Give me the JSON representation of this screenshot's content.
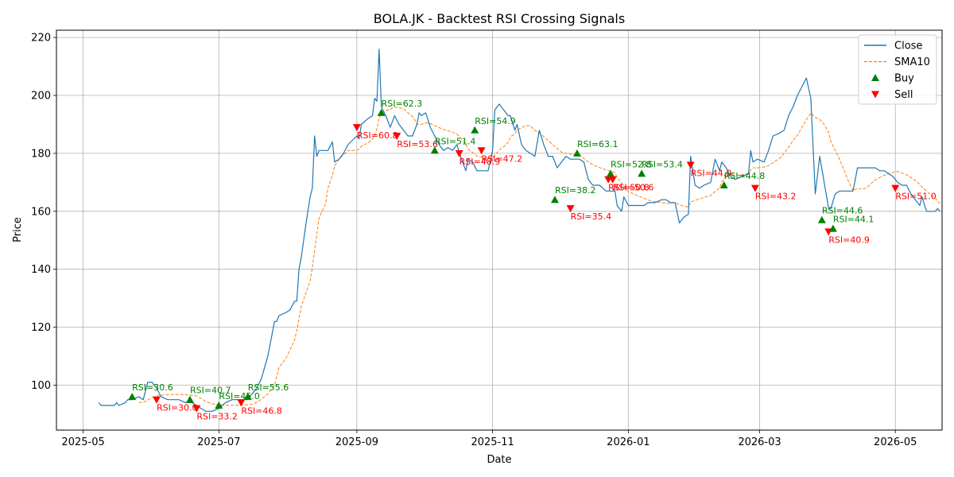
{
  "chart_data": {
    "type": "line",
    "title": "BOLA.JK - Backtest RSI Crossing Signals",
    "xlabel": "Date",
    "ylabel": "Price",
    "xlim": [
      "2025-04-19",
      "2026-05-22"
    ],
    "ylim": [
      84.5,
      222.5
    ],
    "grid": true,
    "legend_position": "top-right",
    "x_ticks": [
      {
        "date": "2025-05-01",
        "label": "2025-05"
      },
      {
        "date": "2025-07-01",
        "label": "2025-07"
      },
      {
        "date": "2025-09-01",
        "label": "2025-09"
      },
      {
        "date": "2025-11-01",
        "label": "2025-11"
      },
      {
        "date": "2026-01-01",
        "label": "2026-01"
      },
      {
        "date": "2026-03-01",
        "label": "2026-03"
      },
      {
        "date": "2026-05-01",
        "label": "2026-05"
      }
    ],
    "y_ticks": [
      100,
      120,
      140,
      160,
      180,
      200,
      220
    ],
    "colors": {
      "close": "#1f77b4",
      "sma": "#ff7f0e",
      "buy": "#008000",
      "sell": "#ff0000",
      "grid": "#b0b0b0"
    },
    "series": [
      {
        "name": "Close",
        "style": "solid",
        "points": [
          [
            "2025-05-08",
            94
          ],
          [
            "2025-05-09",
            93
          ],
          [
            "2025-05-14",
            93
          ],
          [
            "2025-05-15",
            93
          ],
          [
            "2025-05-16",
            94
          ],
          [
            "2025-05-17",
            93
          ],
          [
            "2025-05-20",
            94
          ],
          [
            "2025-05-21",
            95
          ],
          [
            "2025-05-23",
            95
          ],
          [
            "2025-05-26",
            96
          ],
          [
            "2025-05-28",
            95
          ],
          [
            "2025-05-30",
            101
          ],
          [
            "2025-06-01",
            101
          ],
          [
            "2025-06-03",
            99
          ],
          [
            "2025-06-05",
            96
          ],
          [
            "2025-06-08",
            95
          ],
          [
            "2025-06-10",
            95
          ],
          [
            "2025-06-13",
            95
          ],
          [
            "2025-06-16",
            94
          ],
          [
            "2025-06-19",
            94
          ],
          [
            "2025-06-21",
            93
          ],
          [
            "2025-06-23",
            92
          ],
          [
            "2025-06-25",
            91
          ],
          [
            "2025-06-28",
            91
          ],
          [
            "2025-07-01",
            92
          ],
          [
            "2025-07-04",
            94
          ],
          [
            "2025-07-07",
            95
          ],
          [
            "2025-07-10",
            95
          ],
          [
            "2025-07-13",
            95
          ],
          [
            "2025-07-16",
            97
          ],
          [
            "2025-07-18",
            99
          ],
          [
            "2025-07-20",
            102
          ],
          [
            "2025-07-23",
            110
          ],
          [
            "2025-07-26",
            122
          ],
          [
            "2025-07-27",
            122
          ],
          [
            "2025-07-28",
            124
          ],
          [
            "2025-07-31",
            125
          ],
          [
            "2025-08-02",
            126
          ],
          [
            "2025-08-04",
            129
          ],
          [
            "2025-08-05",
            129
          ],
          [
            "2025-08-06",
            140
          ],
          [
            "2025-08-07",
            144
          ],
          [
            "2025-08-09",
            155
          ],
          [
            "2025-08-11",
            165
          ],
          [
            "2025-08-12",
            168
          ],
          [
            "2025-08-13",
            186
          ],
          [
            "2025-08-14",
            179
          ],
          [
            "2025-08-15",
            181
          ],
          [
            "2025-08-18",
            181
          ],
          [
            "2025-08-19",
            181
          ],
          [
            "2025-08-21",
            184
          ],
          [
            "2025-08-22",
            177
          ],
          [
            "2025-08-24",
            178
          ],
          [
            "2025-08-26",
            180
          ],
          [
            "2025-08-28",
            183
          ],
          [
            "2025-09-01",
            186
          ],
          [
            "2025-09-02",
            185
          ],
          [
            "2025-09-03",
            190
          ],
          [
            "2025-09-06",
            192
          ],
          [
            "2025-09-08",
            193
          ],
          [
            "2025-09-09",
            199
          ],
          [
            "2025-09-10",
            198
          ],
          [
            "2025-09-11",
            216
          ],
          [
            "2025-09-12",
            196
          ],
          [
            "2025-09-14",
            193
          ],
          [
            "2025-09-16",
            189
          ],
          [
            "2025-09-17",
            191
          ],
          [
            "2025-09-18",
            193
          ],
          [
            "2025-09-20",
            190
          ],
          [
            "2025-09-22",
            188
          ],
          [
            "2025-09-24",
            186
          ],
          [
            "2025-09-26",
            186
          ],
          [
            "2025-09-28",
            190
          ],
          [
            "2025-09-29",
            194
          ],
          [
            "2025-09-30",
            193
          ],
          [
            "2025-10-02",
            194
          ],
          [
            "2025-10-04",
            189
          ],
          [
            "2025-10-06",
            186
          ],
          [
            "2025-10-08",
            183
          ],
          [
            "2025-10-10",
            181
          ],
          [
            "2025-10-12",
            182
          ],
          [
            "2025-10-14",
            181
          ],
          [
            "2025-10-16",
            183
          ],
          [
            "2025-10-18",
            178
          ],
          [
            "2025-10-20",
            174
          ],
          [
            "2025-10-21",
            178
          ],
          [
            "2025-10-23",
            177
          ],
          [
            "2025-10-25",
            174
          ],
          [
            "2025-10-30",
            174
          ],
          [
            "2025-11-01",
            181
          ],
          [
            "2025-11-02",
            195
          ],
          [
            "2025-11-04",
            197
          ],
          [
            "2025-11-06",
            195
          ],
          [
            "2025-11-08",
            193
          ],
          [
            "2025-11-09",
            193
          ],
          [
            "2025-11-11",
            188
          ],
          [
            "2025-11-12",
            190
          ],
          [
            "2025-11-14",
            183
          ],
          [
            "2025-11-16",
            181
          ],
          [
            "2025-11-18",
            180
          ],
          [
            "2025-11-20",
            179
          ],
          [
            "2025-11-22",
            188
          ],
          [
            "2025-11-24",
            183
          ],
          [
            "2025-11-26",
            179
          ],
          [
            "2025-11-28",
            179
          ],
          [
            "2025-11-30",
            175
          ],
          [
            "2025-12-02",
            177
          ],
          [
            "2025-12-04",
            179
          ],
          [
            "2025-12-06",
            178
          ],
          [
            "2025-12-08",
            178
          ],
          [
            "2025-12-10",
            178
          ],
          [
            "2025-12-12",
            177
          ],
          [
            "2025-12-14",
            171
          ],
          [
            "2025-12-16",
            169
          ],
          [
            "2025-12-19",
            169
          ],
          [
            "2025-12-22",
            167
          ],
          [
            "2025-12-26",
            167
          ],
          [
            "2025-12-27",
            162
          ],
          [
            "2025-12-29",
            160
          ],
          [
            "2025-12-30",
            165
          ],
          [
            "2026-01-01",
            162
          ],
          [
            "2026-01-05",
            162
          ],
          [
            "2026-01-08",
            162
          ],
          [
            "2026-01-10",
            163
          ],
          [
            "2026-01-13",
            163
          ],
          [
            "2026-01-16",
            164
          ],
          [
            "2026-01-18",
            164
          ],
          [
            "2026-01-20",
            163
          ],
          [
            "2026-01-22",
            163
          ],
          [
            "2026-01-24",
            156
          ],
          [
            "2026-01-26",
            158
          ],
          [
            "2026-01-28",
            159
          ],
          [
            "2026-01-29",
            179
          ],
          [
            "2026-01-31",
            169
          ],
          [
            "2026-02-02",
            168
          ],
          [
            "2026-02-04",
            169
          ],
          [
            "2026-02-07",
            170
          ],
          [
            "2026-02-09",
            178
          ],
          [
            "2026-02-11",
            174
          ],
          [
            "2026-02-12",
            177
          ],
          [
            "2026-02-14",
            175
          ],
          [
            "2026-02-16",
            172
          ],
          [
            "2026-02-18",
            171
          ],
          [
            "2026-02-21",
            172
          ],
          [
            "2026-02-24",
            173
          ],
          [
            "2026-02-25",
            181
          ],
          [
            "2026-02-26",
            177
          ],
          [
            "2026-02-28",
            178
          ],
          [
            "2026-03-03",
            177
          ],
          [
            "2026-03-05",
            181
          ],
          [
            "2026-03-07",
            186
          ],
          [
            "2026-03-10",
            187
          ],
          [
            "2026-03-12",
            188
          ],
          [
            "2026-03-14",
            193
          ],
          [
            "2026-03-16",
            196
          ],
          [
            "2026-03-18",
            200
          ],
          [
            "2026-03-20",
            203
          ],
          [
            "2026-03-22",
            206
          ],
          [
            "2026-03-24",
            199
          ],
          [
            "2026-03-26",
            166
          ],
          [
            "2026-03-28",
            179
          ],
          [
            "2026-03-30",
            170
          ],
          [
            "2026-04-01",
            161
          ],
          [
            "2026-04-02",
            161
          ],
          [
            "2026-04-04",
            166
          ],
          [
            "2026-04-06",
            167
          ],
          [
            "2026-04-08",
            167
          ],
          [
            "2026-04-10",
            167
          ],
          [
            "2026-04-12",
            167
          ],
          [
            "2026-04-14",
            175
          ],
          [
            "2026-04-16",
            175
          ],
          [
            "2026-04-18",
            175
          ],
          [
            "2026-04-20",
            175
          ],
          [
            "2026-04-22",
            175
          ],
          [
            "2026-04-24",
            174
          ],
          [
            "2026-04-26",
            174
          ],
          [
            "2026-04-28",
            173
          ],
          [
            "2026-04-30",
            172
          ],
          [
            "2026-05-02",
            170
          ],
          [
            "2026-05-04",
            169
          ],
          [
            "2026-05-06",
            169
          ],
          [
            "2026-05-08",
            166
          ],
          [
            "2026-05-10",
            164
          ],
          [
            "2026-05-12",
            162
          ],
          [
            "2026-05-13",
            165
          ],
          [
            "2026-05-15",
            160
          ],
          [
            "2026-05-17",
            160
          ],
          [
            "2026-05-19",
            160
          ],
          [
            "2026-05-20",
            161
          ],
          [
            "2026-05-21",
            160
          ]
        ]
      },
      {
        "name": "SMA10",
        "style": "dashed",
        "points": []
      }
    ],
    "signals": [
      {
        "type": "Buy",
        "date": "2025-05-23",
        "price": 96,
        "label": "RSI=30.6"
      },
      {
        "type": "Sell",
        "date": "2025-06-03",
        "price": 95,
        "label": "RSI=30.0"
      },
      {
        "type": "Buy",
        "date": "2025-06-18",
        "price": 95,
        "label": "RSI=40.7"
      },
      {
        "type": "Sell",
        "date": "2025-06-21",
        "price": 92,
        "label": "RSI=33.2"
      },
      {
        "type": "Buy",
        "date": "2025-07-01",
        "price": 93,
        "label": "RSI=45.0"
      },
      {
        "type": "Sell",
        "date": "2025-07-11",
        "price": 94,
        "label": "RSI=46.8"
      },
      {
        "type": "Buy",
        "date": "2025-07-14",
        "price": 96,
        "label": "RSI=55.6"
      },
      {
        "type": "Sell",
        "date": "2025-09-01",
        "price": 189,
        "label": "RSI=60.8"
      },
      {
        "type": "Buy",
        "date": "2025-09-12",
        "price": 194,
        "label": "RSI=62.3"
      },
      {
        "type": "Sell",
        "date": "2025-09-19",
        "price": 186,
        "label": "RSI=53.6"
      },
      {
        "type": "Buy",
        "date": "2025-10-06",
        "price": 181,
        "label": "RSI=51.4"
      },
      {
        "type": "Sell",
        "date": "2025-10-17",
        "price": 180,
        "label": "RSI=48.9"
      },
      {
        "type": "Buy",
        "date": "2025-10-24",
        "price": 188,
        "label": "RSI=54.9"
      },
      {
        "type": "Sell",
        "date": "2025-10-27",
        "price": 181,
        "label": "RSI=47.2"
      },
      {
        "type": "Buy",
        "date": "2025-11-29",
        "price": 164,
        "label": "RSI=38.2"
      },
      {
        "type": "Sell",
        "date": "2025-12-06",
        "price": 161,
        "label": "RSI=35.4"
      },
      {
        "type": "Buy",
        "date": "2025-12-09",
        "price": 180,
        "label": "RSI=63.1"
      },
      {
        "type": "Sell",
        "date": "2025-12-23",
        "price": 171,
        "label": "RSI=50.8"
      },
      {
        "type": "Buy",
        "date": "2025-12-24",
        "price": 173,
        "label": "RSI=52.8"
      },
      {
        "type": "Sell",
        "date": "2025-12-25",
        "price": 171,
        "label": "RSI=50.6"
      },
      {
        "type": "Buy",
        "date": "2026-01-07",
        "price": 173,
        "label": "RSI=53.4"
      },
      {
        "type": "Sell",
        "date": "2026-01-29",
        "price": 176,
        "label": "RSI=44.0"
      },
      {
        "type": "Buy",
        "date": "2026-02-13",
        "price": 169,
        "label": "RSI=44.8"
      },
      {
        "type": "Sell",
        "date": "2026-02-27",
        "price": 168,
        "label": "RSI=43.2"
      },
      {
        "type": "Buy",
        "date": "2026-03-29",
        "price": 157,
        "label": "RSI=44.6"
      },
      {
        "type": "Sell",
        "date": "2026-04-01",
        "price": 153,
        "label": "RSI=40.9"
      },
      {
        "type": "Buy",
        "date": "2026-04-03",
        "price": 154,
        "label": "RSI=44.1"
      },
      {
        "type": "Sell",
        "date": "2026-05-01",
        "price": 168,
        "label": "RSI=51.0"
      }
    ],
    "legend": [
      {
        "label": "Close",
        "kind": "line"
      },
      {
        "label": "SMA10",
        "kind": "dashed"
      },
      {
        "label": "Buy",
        "kind": "buy"
      },
      {
        "label": "Sell",
        "kind": "sell"
      }
    ]
  }
}
